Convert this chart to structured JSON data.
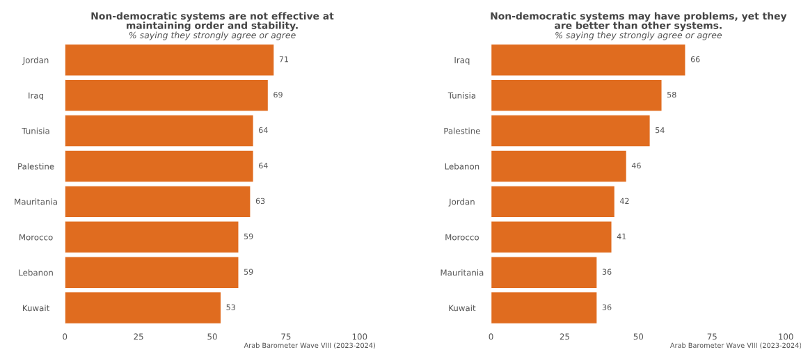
{
  "chart_data": [
    {
      "type": "bar",
      "orientation": "horizontal",
      "title": "Non-democratic systems are not effective at\nmaintaining order and stability.",
      "subtitle": "% saying they strongly agree or agree",
      "categories": [
        "Jordan",
        "Iraq",
        "Tunisia",
        "Palestine",
        "Mauritania",
        "Morocco",
        "Lebanon",
        "Kuwait"
      ],
      "values": [
        71,
        69,
        64,
        64,
        63,
        59,
        59,
        53
      ],
      "color": "#e06c1f",
      "data_labels": true,
      "xlim": [
        0,
        100
      ],
      "xticks": [
        0,
        25,
        50,
        75,
        100
      ],
      "grid": false,
      "legend": false,
      "annotations": [
        "Arab Barometer Wave VIII (2023-2024)"
      ]
    },
    {
      "type": "bar",
      "orientation": "horizontal",
      "title": "Non-democratic systems may have problems, yet they\nare better than other systems.",
      "subtitle": "% saying they strongly agree or agree",
      "categories": [
        "Iraq",
        "Tunisia",
        "Palestine",
        "Lebanon",
        "Jordan",
        "Morocco",
        "Mauritania",
        "Kuwait"
      ],
      "values": [
        66,
        58,
        54,
        46,
        42,
        41,
        36,
        36
      ],
      "color": "#e06c1f",
      "data_labels": true,
      "xlim": [
        0,
        100
      ],
      "xticks": [
        0,
        25,
        50,
        75,
        100
      ],
      "grid": false,
      "legend": false,
      "annotations": [
        "Arab Barometer Wave VIII (2023-2024)"
      ]
    }
  ]
}
